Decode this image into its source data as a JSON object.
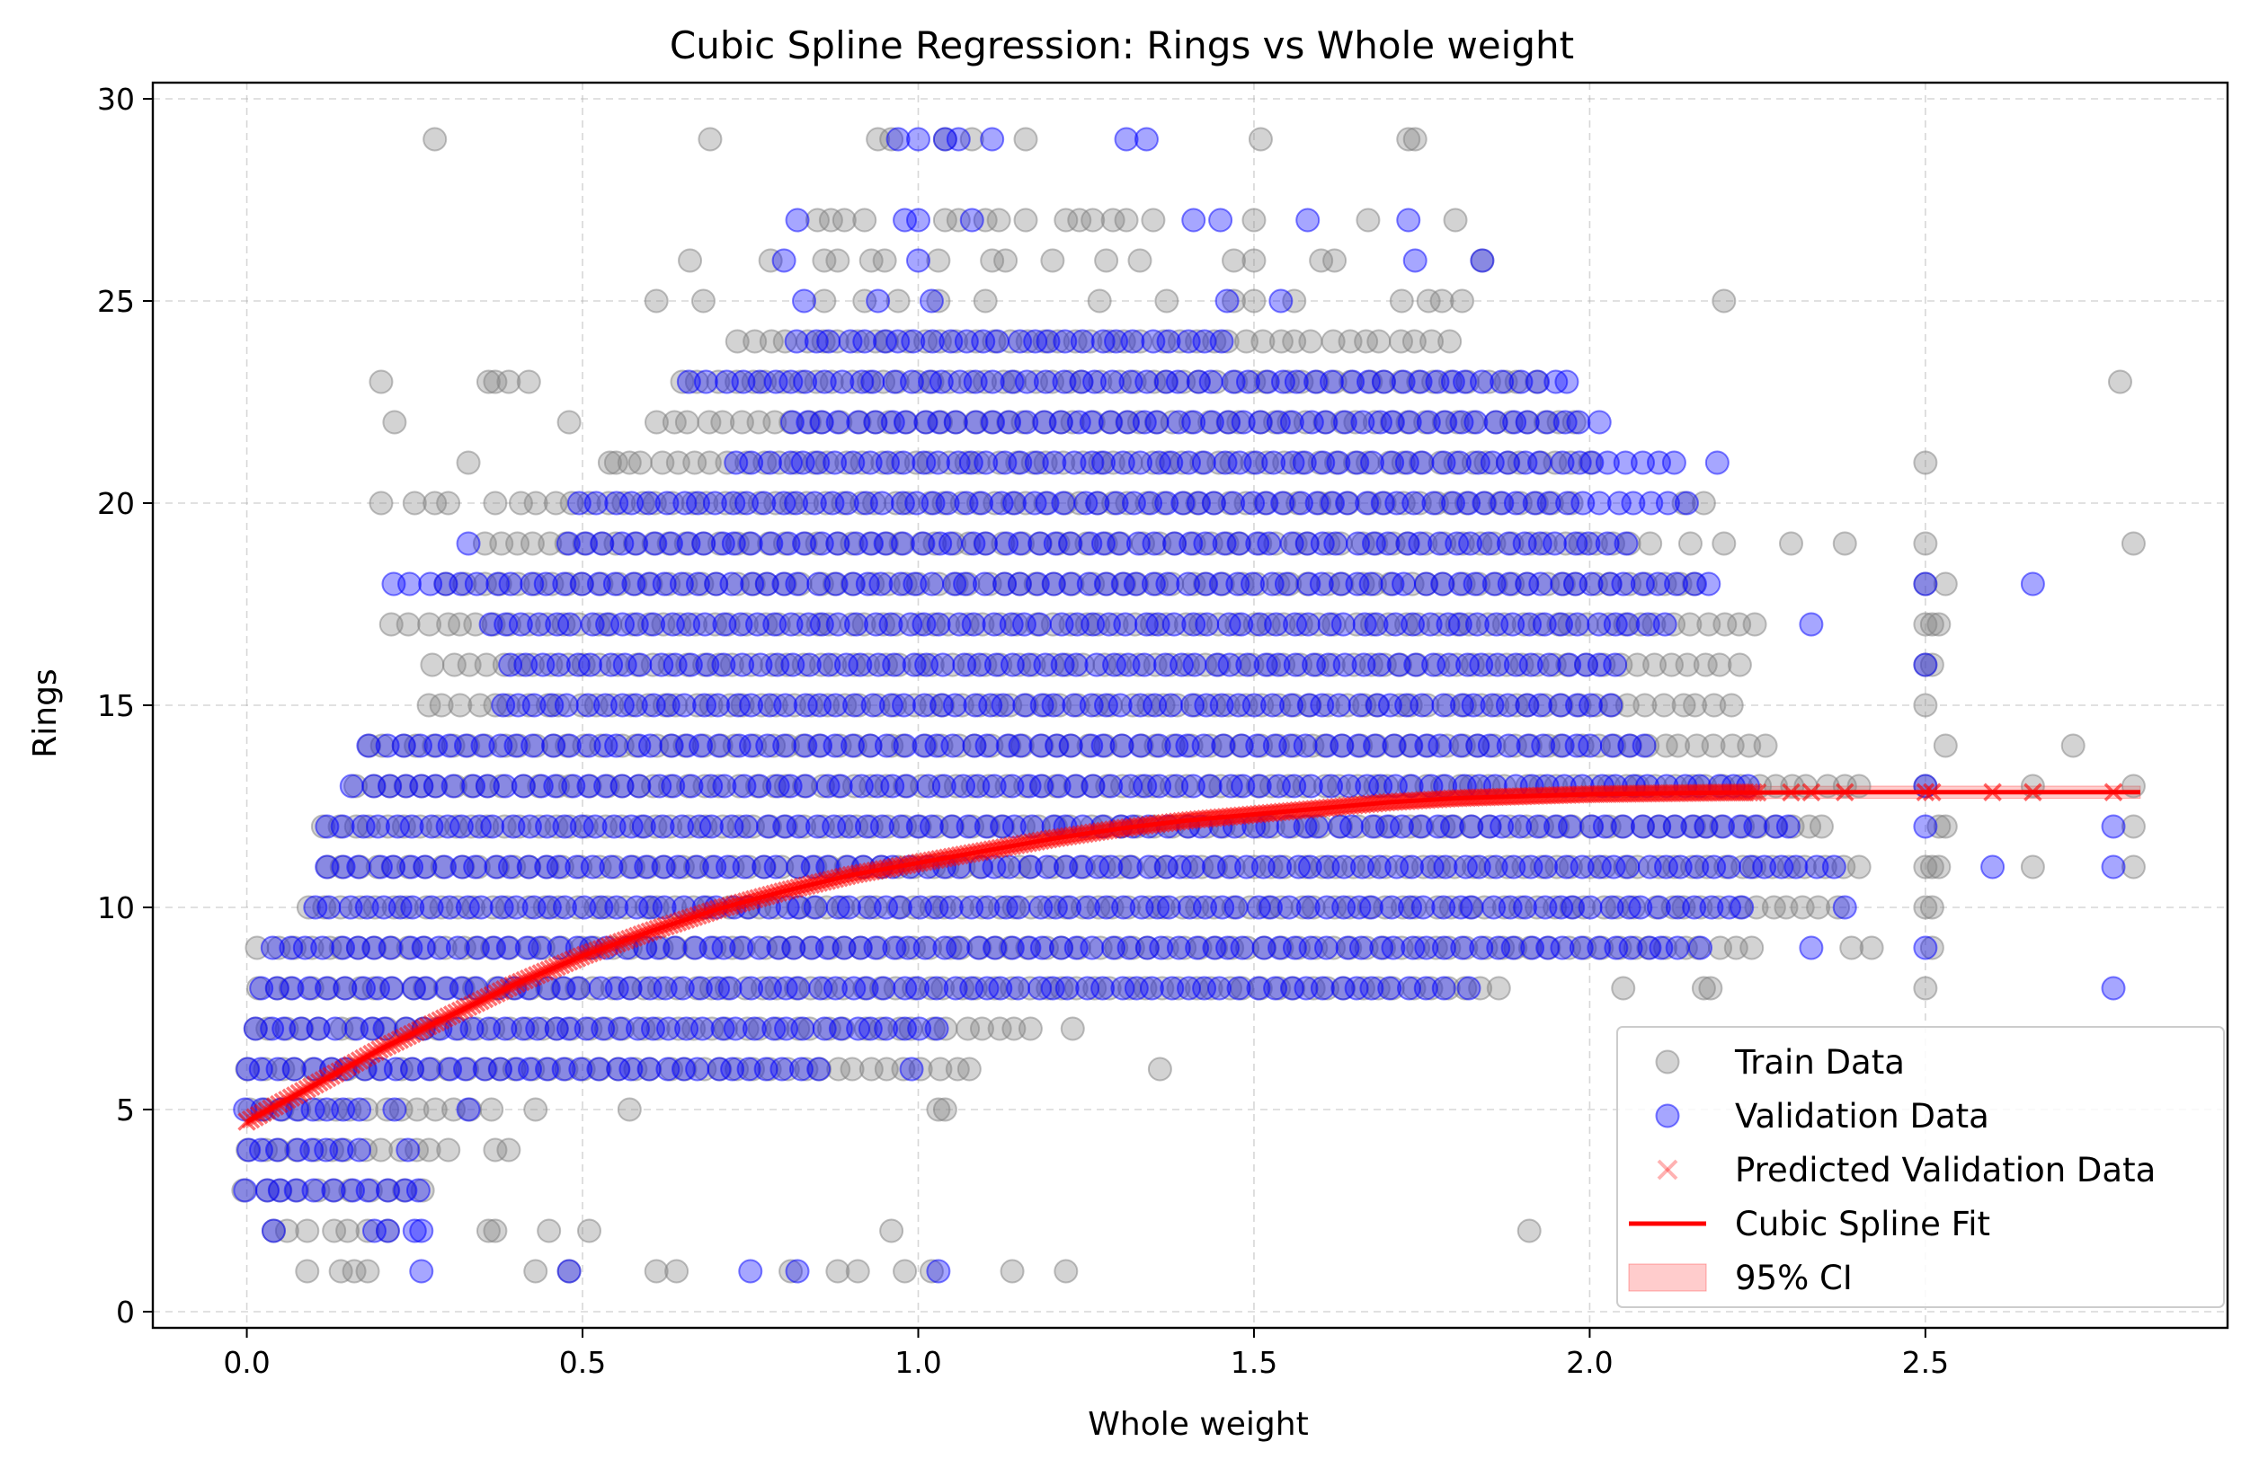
{
  "chart_data": {
    "type": "scatter",
    "title": "Cubic Spline Regression: Rings vs Whole weight",
    "xlabel": "Whole weight",
    "ylabel": "Rings",
    "xlim": [
      -0.14,
      2.95
    ],
    "ylim": [
      -0.4,
      30.4
    ],
    "xticks": [
      0.0,
      0.5,
      1.0,
      1.5,
      2.0,
      2.5
    ],
    "xtick_labels": [
      "0.0",
      "0.5",
      "1.0",
      "1.5",
      "2.0",
      "2.5"
    ],
    "yticks": [
      0,
      5,
      10,
      15,
      20,
      25,
      30
    ],
    "ytick_labels": [
      "0",
      "5",
      "10",
      "15",
      "20",
      "25",
      "30"
    ],
    "grid": true,
    "legend_position": "lower-right",
    "series": [
      {
        "name": "Train Data",
        "kind": "scatter",
        "color": "#808080",
        "opacity": 0.35,
        "marker": "circle",
        "bands": [
          {
            "y": 1,
            "x": [
              0.09,
              0.14,
              0.16,
              0.18,
              0.43,
              0.48,
              0.61,
              0.64,
              0.81,
              0.88,
              0.91,
              0.98,
              1.02,
              1.14,
              1.22
            ]
          },
          {
            "y": 2,
            "x": [
              0.04,
              0.06,
              0.09,
              0.13,
              0.15,
              0.18,
              0.21,
              0.36,
              0.37,
              0.45,
              0.51,
              0.96,
              1.91
            ]
          },
          {
            "x_range": [
              0.0,
              0.26
            ],
            "y": 3
          },
          {
            "x_range": [
              0.0,
              0.3
            ],
            "y": 4,
            "extra": [
              0.37,
              0.39
            ]
          },
          {
            "x_range": [
              0.0,
              0.36
            ],
            "y": 5,
            "extra": [
              0.43,
              0.57,
              1.03,
              1.04
            ]
          },
          {
            "x_range": [
              0.0,
              1.08
            ],
            "y": 6,
            "extra": [
              1.36
            ]
          },
          {
            "x_range": [
              0.01,
              1.17
            ],
            "y": 7,
            "extra": [
              1.23
            ]
          },
          {
            "x_range": [
              0.02,
              1.86
            ],
            "y": 8,
            "extra": [
              2.05,
              2.17,
              2.18,
              2.5
            ]
          },
          {
            "x_range": [
              0.02,
              2.24
            ],
            "y": 9,
            "extra": [
              2.39,
              2.42,
              2.51
            ]
          },
          {
            "x_range": [
              0.09,
              2.37
            ],
            "y": 10,
            "extra": [
              2.5,
              2.51
            ]
          },
          {
            "x_range": [
              0.12,
              2.4
            ],
            "y": 11,
            "extra": [
              2.5,
              2.51,
              2.52,
              2.66,
              2.81
            ]
          },
          {
            "x_range": [
              0.11,
              2.35
            ],
            "y": 12,
            "extra": [
              2.52,
              2.53,
              2.81
            ]
          },
          {
            "x_range": [
              0.16,
              2.4
            ],
            "y": 13,
            "extra": [
              2.5,
              2.66,
              2.81
            ]
          },
          {
            "x_range": [
              0.18,
              2.26
            ],
            "y": 14,
            "extra": [
              2.53,
              2.72
            ]
          },
          {
            "x_range": [
              0.27,
              2.21
            ],
            "y": 15,
            "extra": [
              2.5
            ]
          },
          {
            "x_range": [
              0.28,
              2.22
            ],
            "y": 16,
            "extra": [
              2.5,
              2.51
            ]
          },
          {
            "x_range": [
              0.22,
              2.25
            ],
            "y": 17,
            "extra": [
              2.5,
              2.51,
              2.52
            ]
          },
          {
            "x_range": [
              0.3,
              2.16
            ],
            "y": 18,
            "extra": [
              2.5,
              2.53
            ]
          },
          {
            "x_range": [
              0.35,
              2.06
            ],
            "y": 19,
            "extra": [
              2.09,
              2.15,
              2.2,
              2.3,
              2.38,
              2.5,
              2.81
            ]
          },
          {
            "x_range": [
              0.41,
              1.97
            ],
            "y": 20,
            "extra": [
              0.2,
              0.25,
              0.28,
              0.3,
              0.37,
              2.14,
              2.17
            ]
          },
          {
            "x_range": [
              0.54,
              2.0
            ],
            "y": 21,
            "extra": [
              0.33,
              0.55,
              2.5
            ]
          },
          {
            "x_range": [
              0.61,
              1.98
            ],
            "y": 22,
            "extra": [
              0.22,
              0.48
            ]
          },
          {
            "x_range": [
              0.65,
              1.92
            ],
            "y": 23,
            "extra": [
              0.2,
              0.36,
              0.37,
              0.39,
              0.42,
              2.79
            ]
          },
          {
            "x_range": [
              0.73,
              1.79
            ],
            "y": 24
          },
          {
            "x": [
              0.61,
              0.68,
              0.86,
              0.92,
              0.97,
              1.03,
              1.1,
              1.27,
              1.37,
              1.47,
              1.5,
              1.56,
              1.72,
              1.76,
              1.78,
              1.81,
              2.2
            ]
          },
          {
            "x": [
              0.66,
              0.78,
              0.86,
              0.88,
              0.93,
              0.95,
              1.03,
              1.11,
              1.13,
              1.2,
              1.28,
              1.33,
              1.47,
              1.5,
              1.6,
              1.62,
              1.84
            ]
          },
          {
            "y": 27,
            "x": [
              0.85,
              0.87,
              0.89,
              0.92,
              1.04,
              1.06,
              1.1,
              1.12,
              1.16,
              1.22,
              1.24,
              1.26,
              1.29,
              1.31,
              1.35,
              1.5,
              1.67,
              1.8
            ]
          },
          {
            "y": 29,
            "x": [
              0.28,
              0.69,
              0.94,
              0.96,
              1.04,
              1.08,
              1.16,
              1.51,
              1.73,
              1.74
            ]
          }
        ]
      },
      {
        "name": "Validation Data",
        "kind": "scatter",
        "color": "#0000ff",
        "opacity": 0.35,
        "marker": "circle",
        "bands": [
          {
            "y": 1,
            "x": [
              0.26,
              0.48,
              0.75,
              0.82,
              1.03
            ]
          },
          {
            "y": 2,
            "x": [
              0.04,
              0.19,
              0.21,
              0.25,
              0.26
            ]
          },
          {
            "x_range": [
              0.0,
              0.26
            ],
            "y": 3
          },
          {
            "x_range": [
              0.0,
              0.17
            ],
            "y": 4,
            "extra": [
              0.24
            ]
          },
          {
            "x_range": [
              0.0,
              0.17
            ],
            "y": 5,
            "extra": [
              0.22,
              0.33
            ]
          },
          {
            "x_range": [
              0.0,
              0.85
            ],
            "y": 6,
            "extra": [
              0.99
            ]
          },
          {
            "x_range": [
              0.01,
              1.03
            ],
            "y": 7
          },
          {
            "x_range": [
              0.02,
              1.78
            ],
            "y": 8,
            "extra": [
              1.82,
              2.78
            ]
          },
          {
            "x_range": [
              0.04,
              2.16
            ],
            "y": 9,
            "extra": [
              2.33,
              2.5
            ]
          },
          {
            "x_range": [
              0.1,
              2.23
            ],
            "y": 10,
            "extra": [
              2.38
            ]
          },
          {
            "x_range": [
              0.12,
              2.36
            ],
            "y": 11,
            "extra": [
              2.6,
              2.78
            ]
          },
          {
            "x_range": [
              0.12,
              2.3
            ],
            "y": 12,
            "extra": [
              2.5,
              2.78
            ]
          },
          {
            "x_range": [
              0.16,
              2.24
            ],
            "y": 13,
            "extra": [
              2.5
            ]
          },
          {
            "x_range": [
              0.18,
              2.08
            ],
            "y": 14
          },
          {
            "x_range": [
              0.38,
              2.03
            ],
            "y": 15
          },
          {
            "x_range": [
              0.39,
              2.04
            ],
            "y": 16,
            "extra": [
              2.5
            ]
          },
          {
            "x_range": [
              0.36,
              2.11
            ],
            "y": 17,
            "extra": [
              2.33
            ]
          },
          {
            "x_range": [
              0.22,
              2.18
            ],
            "y": 18,
            "extra": [
              2.5,
              2.66
            ]
          },
          {
            "x_range": [
              0.48,
              2.05
            ],
            "y": 19,
            "extra": [
              0.33
            ]
          },
          {
            "x_range": [
              0.5,
              2.14
            ],
            "y": 20
          },
          {
            "x_range": [
              0.73,
              2.13
            ],
            "y": 21,
            "extra": [
              2.19
            ]
          },
          {
            "x_range": [
              0.81,
              2.01
            ],
            "y": 22
          },
          {
            "x_range": [
              0.66,
              1.97
            ],
            "y": 23
          },
          {
            "x_range": [
              0.82,
              1.45
            ],
            "y": 24
          },
          {
            "y": 25,
            "x": [
              0.83,
              0.94,
              1.02,
              1.46,
              1.54
            ]
          },
          {
            "y": 26,
            "x": [
              0.8,
              1.0,
              1.74,
              1.84
            ]
          },
          {
            "y": 27,
            "x": [
              0.82,
              0.98,
              1.0,
              1.08,
              1.41,
              1.45,
              1.58,
              1.73
            ]
          },
          {
            "y": 29,
            "x": [
              0.97,
              1.0,
              1.04,
              1.06,
              1.11,
              1.31,
              1.34
            ]
          }
        ]
      },
      {
        "name": "Predicted Validation Data",
        "kind": "scatter",
        "color": "#ff0000",
        "opacity": 0.3,
        "marker": "x",
        "x_range": [
          0.0,
          2.78
        ]
      },
      {
        "name": "Cubic Spline Fit",
        "kind": "line",
        "color": "#ff0000",
        "x": [
          0.0,
          0.1,
          0.2,
          0.3,
          0.4,
          0.5,
          0.6,
          0.7,
          0.8,
          0.9,
          1.0,
          1.1,
          1.2,
          1.3,
          1.4,
          1.5,
          1.6,
          1.7,
          1.8,
          1.9,
          2.0,
          2.1,
          2.2,
          2.4,
          2.6,
          2.82
        ],
        "y": [
          4.7,
          5.6,
          6.5,
          7.3,
          8.1,
          8.8,
          9.4,
          9.95,
          10.4,
          10.8,
          11.1,
          11.4,
          11.7,
          11.95,
          12.15,
          12.3,
          12.45,
          12.6,
          12.7,
          12.75,
          12.8,
          12.82,
          12.84,
          12.85,
          12.85,
          12.85
        ]
      },
      {
        "name": "95% CI",
        "kind": "band",
        "color": "#ff0000",
        "opacity": 0.2,
        "halfwidth": 0.15
      }
    ]
  },
  "legend": {
    "items": [
      {
        "label": "Train Data",
        "marker": "circle",
        "color": "#808080",
        "opacity": 0.35
      },
      {
        "label": "Validation Data",
        "marker": "circle",
        "color": "#0000ff",
        "opacity": 0.35
      },
      {
        "label": "Predicted Validation Data",
        "marker": "x",
        "color": "#ff0000",
        "opacity": 0.3
      },
      {
        "label": "Cubic Spline Fit",
        "marker": "line",
        "color": "#ff0000",
        "opacity": 1
      },
      {
        "label": "95% CI",
        "marker": "patch",
        "color": "#ff0000",
        "opacity": 0.2
      }
    ]
  }
}
